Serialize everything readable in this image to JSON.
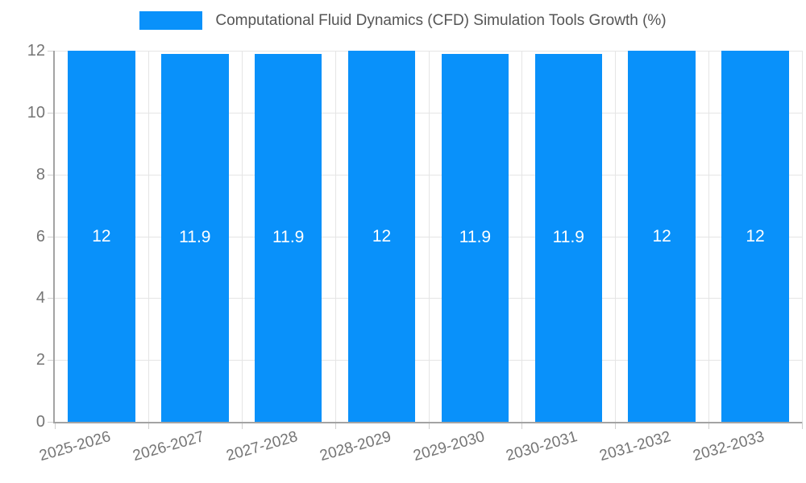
{
  "chart_data": {
    "type": "bar",
    "title": "Computational Fluid Dynamics (CFD) Simulation Tools Growth (%)",
    "legend_position": "top",
    "categories": [
      "2025-2026",
      "2026-2027",
      "2027-2028",
      "2028-2029",
      "2029-2030",
      "2030-2031",
      "2031-2032",
      "2032-2033"
    ],
    "series": [
      {
        "name": "Computational Fluid Dynamics (CFD) Simulation Tools Growth (%)",
        "values": [
          12,
          11.9,
          11.9,
          12,
          11.9,
          11.9,
          12,
          12
        ],
        "value_labels": [
          "12",
          "11.9",
          "11.9",
          "12",
          "11.9",
          "11.9",
          "12",
          "12"
        ]
      }
    ],
    "xlabel": "",
    "ylabel": "",
    "ylim": [
      0,
      12
    ],
    "yticks": [
      0,
      2,
      4,
      6,
      8,
      10,
      12
    ],
    "grid": true,
    "colors": {
      "bar": "#0991fa",
      "bar_value_text": "#ffffff",
      "axis_text": "#757575",
      "grid_line": "#e5e5e5",
      "axis_line": "#a3a3a3",
      "tick_mark": "#cfcfcf",
      "legend_text": "#555555",
      "background": "#ffffff"
    }
  }
}
